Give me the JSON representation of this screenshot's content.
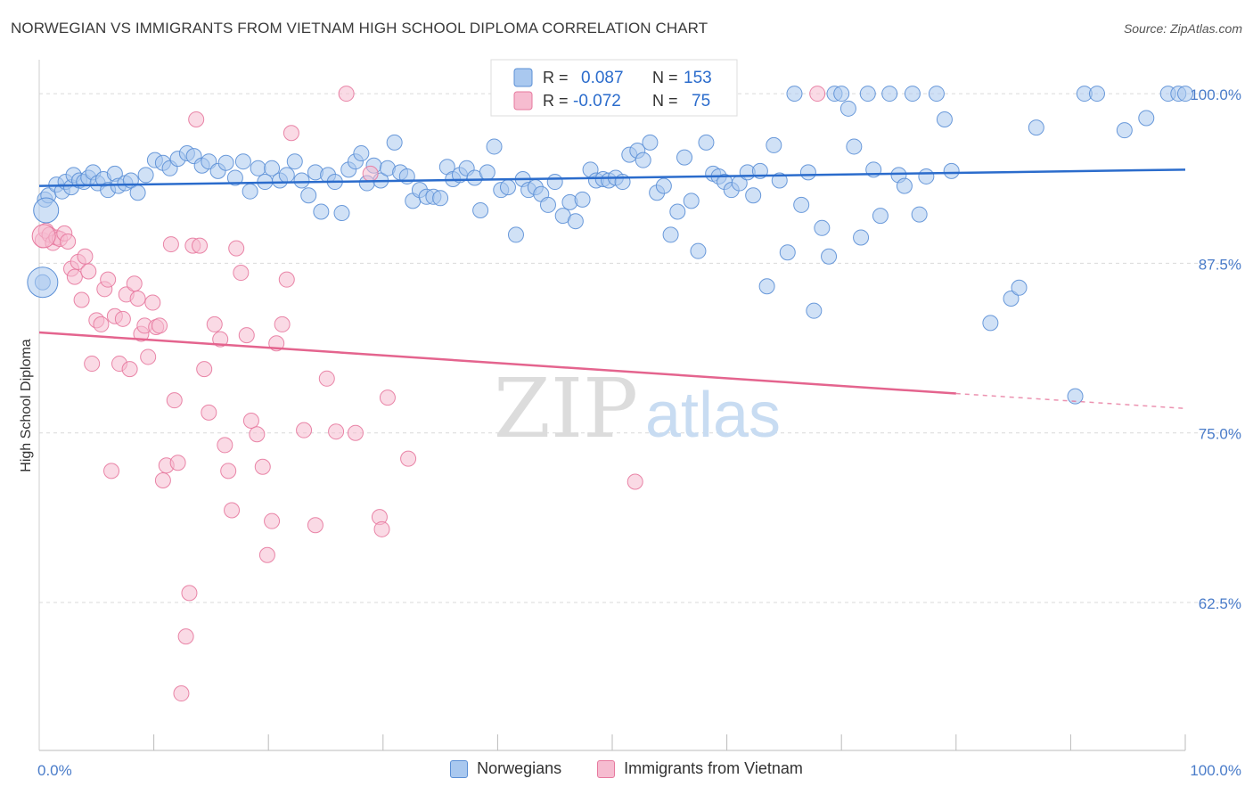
{
  "header": {
    "title": "NORWEGIAN VS IMMIGRANTS FROM VIETNAM HIGH SCHOOL DIPLOMA CORRELATION CHART",
    "source": "Source: ZipAtlas.com"
  },
  "watermark": {
    "zip": "ZIP",
    "atlas": "atlas"
  },
  "colors": {
    "blue_fill": "#a9c8ef",
    "blue_stroke": "#5b8fd6",
    "blue_line": "#2b6ccc",
    "pink_fill": "#f6bcd0",
    "pink_stroke": "#e7799e",
    "pink_line": "#e4648e",
    "tick_label": "#4a7cc9",
    "grid": "#d9d9d9"
  },
  "legend": {
    "rows": [
      {
        "r_label": "R =",
        "r_value": "0.087",
        "n_label": "N =",
        "n_value": "153"
      },
      {
        "r_label": "R =",
        "r_value": "-0.072",
        "n_label": "N =",
        "n_value": "75"
      }
    ]
  },
  "bottom_legend": {
    "series1": "Norwegians",
    "series2": "Immigrants from Vietnam"
  },
  "chart_data": {
    "type": "scatter",
    "ylabel": "High School Diploma",
    "x_ticks": [
      "0.0%",
      "100.0%"
    ],
    "y_ticks": [
      "100.0%",
      "87.5%",
      "75.0%",
      "62.5%"
    ],
    "xlim": [
      0,
      100
    ],
    "ylim": [
      51.6,
      102.5
    ],
    "grid": true,
    "series": [
      {
        "name": "Norwegians",
        "trend": {
          "x": [
            0,
            100
          ],
          "y": [
            93.2,
            94.4
          ]
        },
        "points": [
          [
            0.3,
            86.1
          ],
          [
            0.5,
            92.2
          ],
          [
            0.8,
            92.5
          ],
          [
            1.5,
            93.3
          ],
          [
            2.0,
            92.8
          ],
          [
            2.3,
            93.5
          ],
          [
            2.8,
            93.1
          ],
          [
            3.0,
            94.0
          ],
          [
            3.5,
            93.6
          ],
          [
            3.9,
            93.5
          ],
          [
            4.3,
            93.8
          ],
          [
            4.7,
            94.2
          ],
          [
            5.1,
            93.4
          ],
          [
            5.6,
            93.7
          ],
          [
            6.0,
            92.9
          ],
          [
            6.6,
            94.1
          ],
          [
            6.9,
            93.2
          ],
          [
            7.5,
            93.4
          ],
          [
            8.0,
            93.6
          ],
          [
            8.6,
            92.7
          ],
          [
            9.3,
            94.0
          ],
          [
            10.1,
            95.1
          ],
          [
            10.8,
            94.9
          ],
          [
            11.4,
            94.5
          ],
          [
            12.1,
            95.2
          ],
          [
            12.9,
            95.6
          ],
          [
            13.5,
            95.4
          ],
          [
            14.2,
            94.7
          ],
          [
            14.8,
            95.0
          ],
          [
            15.6,
            94.3
          ],
          [
            16.3,
            94.9
          ],
          [
            17.1,
            93.8
          ],
          [
            17.8,
            95.0
          ],
          [
            18.4,
            92.8
          ],
          [
            19.1,
            94.5
          ],
          [
            19.7,
            93.5
          ],
          [
            20.3,
            94.5
          ],
          [
            21.0,
            93.6
          ],
          [
            21.6,
            94.0
          ],
          [
            22.3,
            95.0
          ],
          [
            22.9,
            93.6
          ],
          [
            23.5,
            92.5
          ],
          [
            24.1,
            94.2
          ],
          [
            24.6,
            91.3
          ],
          [
            25.2,
            94.0
          ],
          [
            25.8,
            93.5
          ],
          [
            26.4,
            91.2
          ],
          [
            27.0,
            94.4
          ],
          [
            27.6,
            95.0
          ],
          [
            28.1,
            95.6
          ],
          [
            28.6,
            93.4
          ],
          [
            29.2,
            94.7
          ],
          [
            29.8,
            93.6
          ],
          [
            30.4,
            94.5
          ],
          [
            31.0,
            96.4
          ],
          [
            31.5,
            94.2
          ],
          [
            32.1,
            93.9
          ],
          [
            32.6,
            92.1
          ],
          [
            33.2,
            92.9
          ],
          [
            33.8,
            92.4
          ],
          [
            34.4,
            92.4
          ],
          [
            35.0,
            92.3
          ],
          [
            35.6,
            94.6
          ],
          [
            36.1,
            93.7
          ],
          [
            36.7,
            94.0
          ],
          [
            37.3,
            94.5
          ],
          [
            38.0,
            93.8
          ],
          [
            38.5,
            91.4
          ],
          [
            39.1,
            94.2
          ],
          [
            39.7,
            96.1
          ],
          [
            40.3,
            92.9
          ],
          [
            40.9,
            93.1
          ],
          [
            41.6,
            89.6
          ],
          [
            42.2,
            93.7
          ],
          [
            42.7,
            92.9
          ],
          [
            43.3,
            93.1
          ],
          [
            43.8,
            92.6
          ],
          [
            44.4,
            91.8
          ],
          [
            45.0,
            93.5
          ],
          [
            45.7,
            91.0
          ],
          [
            46.3,
            92.0
          ],
          [
            46.8,
            90.6
          ],
          [
            47.4,
            92.2
          ],
          [
            48.1,
            94.4
          ],
          [
            48.6,
            93.6
          ],
          [
            49.2,
            93.7
          ],
          [
            49.7,
            93.6
          ],
          [
            50.3,
            93.8
          ],
          [
            50.9,
            93.5
          ],
          [
            51.5,
            95.5
          ],
          [
            52.2,
            95.8
          ],
          [
            52.7,
            95.1
          ],
          [
            53.3,
            96.4
          ],
          [
            53.9,
            92.7
          ],
          [
            54.5,
            93.2
          ],
          [
            55.1,
            89.6
          ],
          [
            55.7,
            91.3
          ],
          [
            56.3,
            95.3
          ],
          [
            56.9,
            92.1
          ],
          [
            57.5,
            88.4
          ],
          [
            58.2,
            96.4
          ],
          [
            58.8,
            94.1
          ],
          [
            59.3,
            93.9
          ],
          [
            59.8,
            93.5
          ],
          [
            60.4,
            92.9
          ],
          [
            61.1,
            93.4
          ],
          [
            61.8,
            94.2
          ],
          [
            62.3,
            92.5
          ],
          [
            62.9,
            94.3
          ],
          [
            63.5,
            85.8
          ],
          [
            64.1,
            96.2
          ],
          [
            64.6,
            93.6
          ],
          [
            65.3,
            88.3
          ],
          [
            65.9,
            100.0
          ],
          [
            66.5,
            91.8
          ],
          [
            67.1,
            94.2
          ],
          [
            67.6,
            84.0
          ],
          [
            68.3,
            90.1
          ],
          [
            68.9,
            88.0
          ],
          [
            69.4,
            100.0
          ],
          [
            70.0,
            100.0
          ],
          [
            70.6,
            98.9
          ],
          [
            71.1,
            96.1
          ],
          [
            71.7,
            89.4
          ],
          [
            72.3,
            100.0
          ],
          [
            72.8,
            94.4
          ],
          [
            73.4,
            91.0
          ],
          [
            74.2,
            100.0
          ],
          [
            75.0,
            94.0
          ],
          [
            75.5,
            93.2
          ],
          [
            76.2,
            100.0
          ],
          [
            76.8,
            91.1
          ],
          [
            77.4,
            93.9
          ],
          [
            78.3,
            100.0
          ],
          [
            79.0,
            98.1
          ],
          [
            79.6,
            94.3
          ],
          [
            83.0,
            83.1
          ],
          [
            84.8,
            84.9
          ],
          [
            85.5,
            85.7
          ],
          [
            87.0,
            97.5
          ],
          [
            90.4,
            77.7
          ],
          [
            91.2,
            100.0
          ],
          [
            92.3,
            100.0
          ],
          [
            94.7,
            97.3
          ],
          [
            96.6,
            98.2
          ],
          [
            98.5,
            100.0
          ],
          [
            99.4,
            100.0
          ],
          [
            100.0,
            100.0
          ]
        ]
      },
      {
        "name": "Immigrants from Vietnam",
        "trend": {
          "x": [
            0,
            80
          ],
          "y": [
            82.4,
            77.9
          ]
        },
        "trend_dashed": {
          "x": [
            80,
            100
          ],
          "y": [
            77.9,
            76.8
          ]
        },
        "points": [
          [
            0.3,
            89.2
          ],
          [
            0.6,
            89.9
          ],
          [
            0.9,
            89.6
          ],
          [
            1.2,
            89.0
          ],
          [
            1.5,
            89.4
          ],
          [
            1.8,
            89.3
          ],
          [
            2.2,
            89.7
          ],
          [
            2.5,
            89.1
          ],
          [
            2.8,
            87.1
          ],
          [
            3.1,
            86.5
          ],
          [
            3.4,
            87.6
          ],
          [
            3.7,
            84.8
          ],
          [
            4.0,
            88.0
          ],
          [
            4.3,
            86.9
          ],
          [
            4.6,
            80.1
          ],
          [
            5.0,
            83.3
          ],
          [
            5.4,
            83.0
          ],
          [
            5.7,
            85.6
          ],
          [
            6.0,
            86.3
          ],
          [
            6.3,
            72.2
          ],
          [
            6.6,
            83.6
          ],
          [
            7.0,
            80.1
          ],
          [
            7.3,
            83.4
          ],
          [
            7.6,
            85.2
          ],
          [
            7.9,
            79.7
          ],
          [
            8.3,
            86.0
          ],
          [
            8.6,
            84.9
          ],
          [
            8.9,
            82.3
          ],
          [
            9.2,
            82.9
          ],
          [
            9.5,
            80.6
          ],
          [
            9.9,
            84.6
          ],
          [
            10.2,
            82.8
          ],
          [
            10.5,
            82.9
          ],
          [
            10.8,
            71.5
          ],
          [
            11.1,
            72.6
          ],
          [
            11.5,
            88.9
          ],
          [
            11.8,
            77.4
          ],
          [
            12.1,
            72.8
          ],
          [
            12.4,
            55.8
          ],
          [
            12.8,
            60.0
          ],
          [
            13.1,
            63.2
          ],
          [
            13.4,
            88.8
          ],
          [
            13.7,
            98.1
          ],
          [
            14.0,
            88.8
          ],
          [
            14.4,
            79.7
          ],
          [
            14.8,
            76.5
          ],
          [
            15.3,
            83.0
          ],
          [
            15.8,
            81.9
          ],
          [
            16.2,
            74.1
          ],
          [
            16.5,
            72.2
          ],
          [
            16.8,
            69.3
          ],
          [
            17.2,
            88.6
          ],
          [
            17.6,
            86.8
          ],
          [
            18.1,
            82.2
          ],
          [
            18.5,
            75.9
          ],
          [
            19.0,
            74.9
          ],
          [
            19.5,
            72.5
          ],
          [
            19.9,
            66.0
          ],
          [
            20.3,
            68.5
          ],
          [
            20.7,
            81.6
          ],
          [
            21.2,
            83.0
          ],
          [
            21.6,
            86.3
          ],
          [
            22.0,
            97.1
          ],
          [
            23.1,
            75.2
          ],
          [
            24.1,
            68.2
          ],
          [
            25.1,
            79.0
          ],
          [
            25.9,
            75.1
          ],
          [
            26.8,
            100.0
          ],
          [
            27.6,
            75.0
          ],
          [
            28.9,
            94.1
          ],
          [
            29.7,
            68.8
          ],
          [
            29.9,
            67.9
          ],
          [
            30.4,
            77.6
          ],
          [
            32.2,
            73.1
          ],
          [
            52.0,
            71.4
          ],
          [
            67.9,
            100.0
          ]
        ]
      }
    ]
  }
}
